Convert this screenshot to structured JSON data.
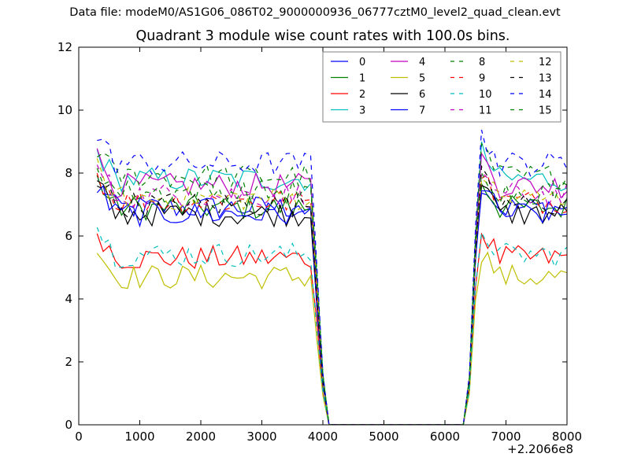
{
  "header": {
    "data_file": "Data file: modeM0/AS1G06_086T02_9000000936_06777cztM0_level2_quad_clean.evt"
  },
  "chart_data": {
    "type": "line",
    "title": "Quadrant 3 module wise count rates with 100.0s bins.",
    "xlabel": "",
    "ylabel": "",
    "x_offset_label": "+2.2066e8",
    "xlim": [
      0,
      8000
    ],
    "ylim": [
      0,
      12
    ],
    "xticks": [
      0,
      1000,
      2000,
      3000,
      4000,
      5000,
      6000,
      7000,
      8000
    ],
    "yticks": [
      0,
      2,
      4,
      6,
      8,
      10,
      12
    ],
    "grid": false,
    "legend_position": "top-right",
    "legend_columns": 4,
    "series": [
      {
        "name": "0",
        "color": "#0000ff",
        "dash": "solid",
        "level": 6.9
      },
      {
        "name": "1",
        "color": "#008000",
        "dash": "solid",
        "level": 6.9
      },
      {
        "name": "2",
        "color": "#ff0000",
        "dash": "solid",
        "level": 5.3
      },
      {
        "name": "3",
        "color": "#00bfbf",
        "dash": "solid",
        "level": 7.8
      },
      {
        "name": "4",
        "color": "#bf00bf",
        "dash": "solid",
        "level": 7.6
      },
      {
        "name": "5",
        "color": "#bfbf00",
        "dash": "solid",
        "level": 4.7
      },
      {
        "name": "6",
        "color": "#000000",
        "dash": "solid",
        "level": 6.7
      },
      {
        "name": "7",
        "color": "#0000ff",
        "dash": "solid",
        "level": 6.7
      },
      {
        "name": "8",
        "color": "#008000",
        "dash": "dashed",
        "level": 7.9
      },
      {
        "name": "9",
        "color": "#ff0000",
        "dash": "dashed",
        "level": 7.1
      },
      {
        "name": "10",
        "color": "#00bfbf",
        "dash": "dashed",
        "level": 5.4
      },
      {
        "name": "11",
        "color": "#bf00bf",
        "dash": "dashed",
        "level": 7.3
      },
      {
        "name": "12",
        "color": "#bfbf00",
        "dash": "dashed",
        "level": 7.2
      },
      {
        "name": "13",
        "color": "#000000",
        "dash": "dashed",
        "level": 7.0
      },
      {
        "name": "14",
        "color": "#0000ff",
        "dash": "dashed",
        "level": 8.3
      },
      {
        "name": "15",
        "color": "#008000",
        "dash": "dashed",
        "level": 7.4
      }
    ],
    "gap": {
      "fall_start": 3800,
      "zero_from": 4050,
      "zero_to": 6300,
      "rise_end": 6550
    },
    "x_start": 300,
    "x_end": 8000,
    "x_step": 100
  }
}
